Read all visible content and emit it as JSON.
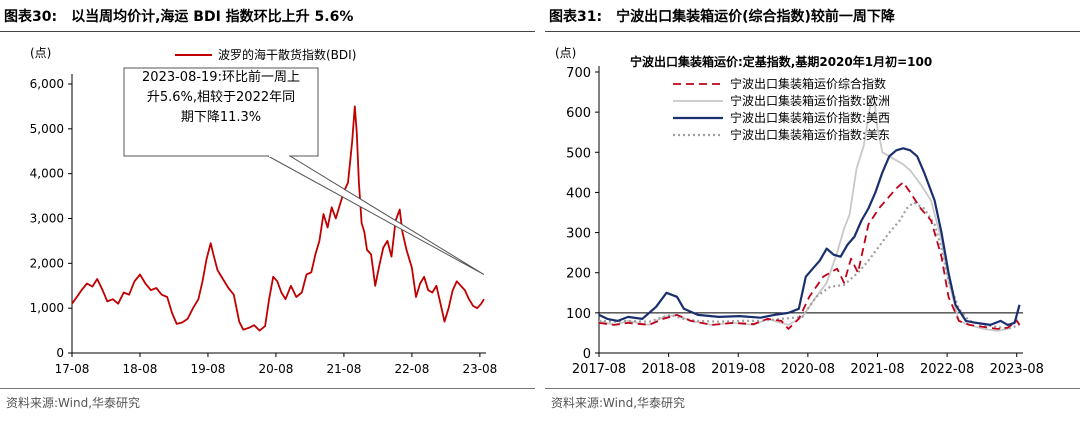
{
  "left_panel": {
    "fig_no": "图表30:",
    "title": "以当周均价计,海运 BDI 指数环比上升 5.6%",
    "source": "资料来源:Wind,华泰研究"
  },
  "right_panel": {
    "fig_no": "图表31:",
    "title": "宁波出口集装箱运价(综合指数)较前一周下降",
    "source": "资料来源:Wind,华泰研究"
  },
  "chart_data": [
    {
      "type": "line",
      "unit_label": "(点)",
      "title": "",
      "ylim": [
        0,
        6000
      ],
      "yticks": [
        "0",
        "1,000",
        "2,000",
        "3,000",
        "4,000",
        "5,000",
        "6,000"
      ],
      "xticks": [
        "17-08",
        "18-08",
        "19-08",
        "20-08",
        "21-08",
        "22-08",
        "23-08"
      ],
      "legend": {
        "placement": "top-center"
      },
      "annotation": {
        "lines": [
          "2023-08-19:环比前一周上",
          "升5.6%,相较于2022年同",
          "期下降11.3%"
        ]
      },
      "series": [
        {
          "name": "波罗的海干散货指数(BDI)",
          "color": "#c00000",
          "points": [
            [
              2017.58,
              1100
            ],
            [
              2017.65,
              1250
            ],
            [
              2017.72,
              1400
            ],
            [
              2017.8,
              1550
            ],
            [
              2017.88,
              1480
            ],
            [
              2017.95,
              1650
            ],
            [
              2018.03,
              1400
            ],
            [
              2018.1,
              1150
            ],
            [
              2018.18,
              1200
            ],
            [
              2018.26,
              1100
            ],
            [
              2018.34,
              1350
            ],
            [
              2018.42,
              1300
            ],
            [
              2018.5,
              1600
            ],
            [
              2018.58,
              1750
            ],
            [
              2018.66,
              1550
            ],
            [
              2018.74,
              1400
            ],
            [
              2018.82,
              1450
            ],
            [
              2018.9,
              1300
            ],
            [
              2018.98,
              1250
            ],
            [
              2019.05,
              900
            ],
            [
              2019.12,
              650
            ],
            [
              2019.2,
              680
            ],
            [
              2019.28,
              760
            ],
            [
              2019.36,
              1000
            ],
            [
              2019.44,
              1200
            ],
            [
              2019.5,
              1600
            ],
            [
              2019.56,
              2100
            ],
            [
              2019.62,
              2450
            ],
            [
              2019.66,
              2200
            ],
            [
              2019.72,
              1850
            ],
            [
              2019.8,
              1650
            ],
            [
              2019.88,
              1450
            ],
            [
              2019.96,
              1300
            ],
            [
              2020.04,
              700
            ],
            [
              2020.1,
              520
            ],
            [
              2020.18,
              560
            ],
            [
              2020.26,
              620
            ],
            [
              2020.34,
              500
            ],
            [
              2020.42,
              600
            ],
            [
              2020.48,
              1200
            ],
            [
              2020.54,
              1700
            ],
            [
              2020.6,
              1600
            ],
            [
              2020.66,
              1350
            ],
            [
              2020.72,
              1200
            ],
            [
              2020.8,
              1500
            ],
            [
              2020.88,
              1250
            ],
            [
              2020.96,
              1350
            ],
            [
              2021.03,
              1750
            ],
            [
              2021.1,
              1800
            ],
            [
              2021.16,
              2200
            ],
            [
              2021.22,
              2500
            ],
            [
              2021.28,
              3100
            ],
            [
              2021.34,
              2800
            ],
            [
              2021.4,
              3250
            ],
            [
              2021.46,
              3000
            ],
            [
              2021.52,
              3300
            ],
            [
              2021.58,
              3600
            ],
            [
              2021.64,
              3800
            ],
            [
              2021.7,
              4700
            ],
            [
              2021.74,
              5500
            ],
            [
              2021.77,
              4900
            ],
            [
              2021.8,
              3800
            ],
            [
              2021.84,
              2900
            ],
            [
              2021.88,
              2700
            ],
            [
              2021.92,
              2300
            ],
            [
              2021.98,
              2200
            ],
            [
              2022.04,
              1500
            ],
            [
              2022.1,
              1950
            ],
            [
              2022.16,
              2350
            ],
            [
              2022.22,
              2500
            ],
            [
              2022.28,
              2150
            ],
            [
              2022.34,
              2950
            ],
            [
              2022.4,
              3200
            ],
            [
              2022.44,
              2700
            ],
            [
              2022.5,
              2300
            ],
            [
              2022.58,
              1900
            ],
            [
              2022.64,
              1250
            ],
            [
              2022.7,
              1550
            ],
            [
              2022.76,
              1700
            ],
            [
              2022.82,
              1400
            ],
            [
              2022.88,
              1350
            ],
            [
              2022.94,
              1500
            ],
            [
              2023.0,
              1100
            ],
            [
              2023.06,
              700
            ],
            [
              2023.12,
              1000
            ],
            [
              2023.18,
              1400
            ],
            [
              2023.24,
              1600
            ],
            [
              2023.3,
              1500
            ],
            [
              2023.36,
              1400
            ],
            [
              2023.42,
              1200
            ],
            [
              2023.48,
              1050
            ],
            [
              2023.54,
              1000
            ],
            [
              2023.6,
              1100
            ],
            [
              2023.64,
              1200
            ]
          ]
        }
      ]
    },
    {
      "type": "line",
      "unit_label": "(点)",
      "title": "宁波出口集装箱运价:定基指数,基期2020年1月初=100",
      "ylim": [
        0,
        700
      ],
      "yticks": [
        "0",
        "100",
        "200",
        "300",
        "400",
        "500",
        "600",
        "700"
      ],
      "xticks": [
        "2017-08",
        "2018-08",
        "2019-08",
        "2020-08",
        "2021-08",
        "2022-08",
        "2023-08"
      ],
      "legend": {
        "placement": "top-left"
      },
      "series": [
        {
          "name": "宁波出口集装箱运价综合指数",
          "color": "#c0001a",
          "points": [
            [
              2017.58,
              75
            ],
            [
              2017.8,
              70
            ],
            [
              2018.0,
              75
            ],
            [
              2018.3,
              70
            ],
            [
              2018.5,
              85
            ],
            [
              2018.7,
              95
            ],
            [
              2018.9,
              80
            ],
            [
              2019.2,
              70
            ],
            [
              2019.5,
              75
            ],
            [
              2019.8,
              72
            ],
            [
              2020.0,
              85
            ],
            [
              2020.2,
              80
            ],
            [
              2020.3,
              60
            ],
            [
              2020.45,
              85
            ],
            [
              2020.6,
              140
            ],
            [
              2020.8,
              190
            ],
            [
              2021.0,
              210
            ],
            [
              2021.1,
              175
            ],
            [
              2021.2,
              235
            ],
            [
              2021.3,
              200
            ],
            [
              2021.45,
              320
            ],
            [
              2021.6,
              360
            ],
            [
              2021.75,
              390
            ],
            [
              2021.85,
              410
            ],
            [
              2021.95,
              425
            ],
            [
              2022.05,
              400
            ],
            [
              2022.2,
              360
            ],
            [
              2022.35,
              330
            ],
            [
              2022.5,
              240
            ],
            [
              2022.6,
              140
            ],
            [
              2022.75,
              80
            ],
            [
              2022.9,
              70
            ],
            [
              2023.1,
              65
            ],
            [
              2023.3,
              60
            ],
            [
              2023.45,
              63
            ],
            [
              2023.58,
              80
            ],
            [
              2023.62,
              70
            ]
          ]
        },
        {
          "name": "宁波出口集装箱运价指数:欧洲",
          "color": "#c8c8c8",
          "points": [
            [
              2017.58,
              80
            ],
            [
              2017.8,
              70
            ],
            [
              2018.0,
              80
            ],
            [
              2018.3,
              70
            ],
            [
              2018.5,
              90
            ],
            [
              2018.7,
              95
            ],
            [
              2018.9,
              80
            ],
            [
              2019.2,
              70
            ],
            [
              2019.5,
              75
            ],
            [
              2019.8,
              70
            ],
            [
              2020.0,
              85
            ],
            [
              2020.3,
              70
            ],
            [
              2020.5,
              90
            ],
            [
              2020.7,
              140
            ],
            [
              2020.85,
              175
            ],
            [
              2021.0,
              250
            ],
            [
              2021.1,
              310
            ],
            [
              2021.18,
              345
            ],
            [
              2021.28,
              460
            ],
            [
              2021.38,
              515
            ],
            [
              2021.48,
              620
            ],
            [
              2021.53,
              640
            ],
            [
              2021.58,
              560
            ],
            [
              2021.65,
              500
            ],
            [
              2021.75,
              490
            ],
            [
              2021.85,
              480
            ],
            [
              2021.95,
              470
            ],
            [
              2022.05,
              455
            ],
            [
              2022.2,
              420
            ],
            [
              2022.35,
              380
            ],
            [
              2022.5,
              280
            ],
            [
              2022.6,
              180
            ],
            [
              2022.75,
              80
            ],
            [
              2022.9,
              70
            ],
            [
              2023.1,
              60
            ],
            [
              2023.3,
              55
            ],
            [
              2023.45,
              60
            ],
            [
              2023.58,
              85
            ],
            [
              2023.62,
              70
            ]
          ]
        },
        {
          "name": "宁波出口集装箱运价指数:美西",
          "color": "#1a2f6e",
          "points": [
            [
              2017.58,
              95
            ],
            [
              2017.7,
              85
            ],
            [
              2017.85,
              80
            ],
            [
              2018.0,
              90
            ],
            [
              2018.2,
              85
            ],
            [
              2018.4,
              115
            ],
            [
              2018.55,
              150
            ],
            [
              2018.7,
              140
            ],
            [
              2018.8,
              110
            ],
            [
              2019.0,
              95
            ],
            [
              2019.3,
              90
            ],
            [
              2019.6,
              92
            ],
            [
              2019.9,
              88
            ],
            [
              2020.1,
              95
            ],
            [
              2020.3,
              100
            ],
            [
              2020.45,
              110
            ],
            [
              2020.55,
              190
            ],
            [
              2020.65,
              210
            ],
            [
              2020.75,
              230
            ],
            [
              2020.85,
              260
            ],
            [
              2020.95,
              245
            ],
            [
              2021.05,
              240
            ],
            [
              2021.15,
              270
            ],
            [
              2021.25,
              290
            ],
            [
              2021.35,
              330
            ],
            [
              2021.45,
              360
            ],
            [
              2021.55,
              400
            ],
            [
              2021.65,
              450
            ],
            [
              2021.75,
              490
            ],
            [
              2021.85,
              505
            ],
            [
              2021.95,
              510
            ],
            [
              2022.05,
              505
            ],
            [
              2022.15,
              490
            ],
            [
              2022.25,
              450
            ],
            [
              2022.4,
              380
            ],
            [
              2022.5,
              300
            ],
            [
              2022.6,
              200
            ],
            [
              2022.7,
              120
            ],
            [
              2022.85,
              80
            ],
            [
              2023.0,
              75
            ],
            [
              2023.2,
              70
            ],
            [
              2023.35,
              80
            ],
            [
              2023.45,
              70
            ],
            [
              2023.55,
              75
            ],
            [
              2023.62,
              120
            ]
          ]
        },
        {
          "name": "宁波出口集装箱运价指数:美东",
          "color": "#a0a0a0",
          "points": [
            [
              2017.58,
              80
            ],
            [
              2017.8,
              78
            ],
            [
              2018.0,
              80
            ],
            [
              2018.3,
              78
            ],
            [
              2018.6,
              95
            ],
            [
              2018.8,
              85
            ],
            [
              2019.0,
              80
            ],
            [
              2019.3,
              78
            ],
            [
              2019.6,
              80
            ],
            [
              2019.9,
              80
            ],
            [
              2020.2,
              85
            ],
            [
              2020.5,
              90
            ],
            [
              2020.7,
              140
            ],
            [
              2020.9,
              165
            ],
            [
              2021.1,
              170
            ],
            [
              2021.3,
              200
            ],
            [
              2021.45,
              230
            ],
            [
              2021.6,
              265
            ],
            [
              2021.75,
              300
            ],
            [
              2021.9,
              330
            ],
            [
              2022.0,
              360
            ],
            [
              2022.1,
              375
            ],
            [
              2022.25,
              360
            ],
            [
              2022.4,
              320
            ],
            [
              2022.5,
              260
            ],
            [
              2022.6,
              180
            ],
            [
              2022.75,
              110
            ],
            [
              2022.9,
              80
            ],
            [
              2023.1,
              70
            ],
            [
              2023.3,
              65
            ],
            [
              2023.45,
              60
            ],
            [
              2023.62,
              70
            ]
          ]
        }
      ]
    }
  ]
}
